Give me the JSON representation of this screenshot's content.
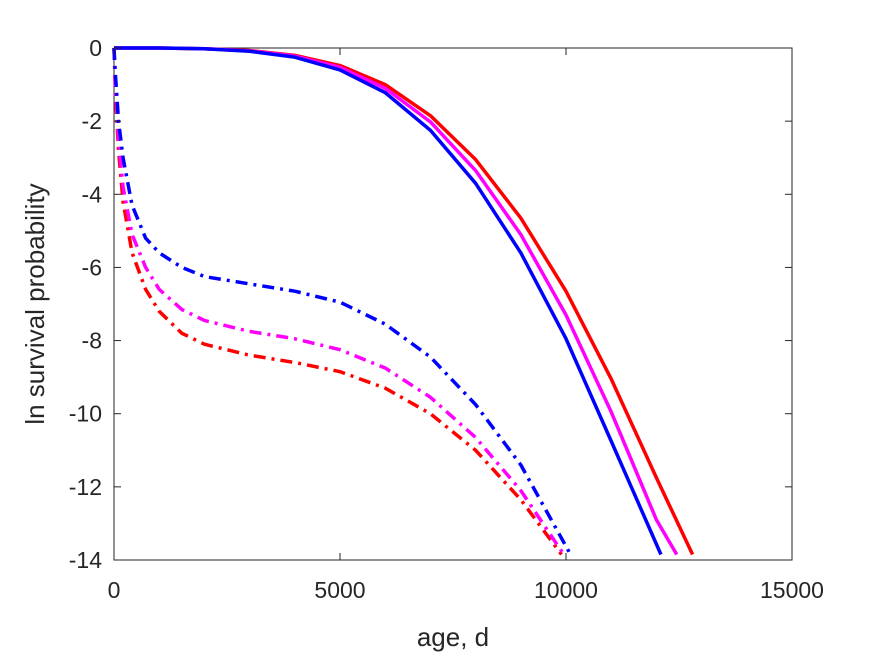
{
  "chart_data": {
    "type": "line",
    "xlabel": "age, d",
    "ylabel": "ln survival probability",
    "xlim": [
      0,
      15000
    ],
    "ylim": [
      -14,
      0
    ],
    "xticks": [
      0,
      5000,
      10000,
      15000
    ],
    "yticks": [
      0,
      -2,
      -4,
      -6,
      -8,
      -10,
      -12,
      -14
    ],
    "grid": false,
    "legend": "none",
    "series": [
      {
        "color": "#ff0000",
        "style": "solid",
        "points": [
          [
            0,
            0
          ],
          [
            1000,
            0
          ],
          [
            2000,
            -0.02
          ],
          [
            3000,
            -0.07
          ],
          [
            4000,
            -0.2
          ],
          [
            5000,
            -0.48
          ],
          [
            6000,
            -1.0
          ],
          [
            7000,
            -1.85
          ],
          [
            8000,
            -3.05
          ],
          [
            9000,
            -4.65
          ],
          [
            10000,
            -6.65
          ],
          [
            11000,
            -9.05
          ],
          [
            12000,
            -11.75
          ],
          [
            12800,
            -13.85
          ]
        ]
      },
      {
        "color": "#ff00ff",
        "style": "solid",
        "points": [
          [
            0,
            0
          ],
          [
            1000,
            0
          ],
          [
            2000,
            -0.02
          ],
          [
            3000,
            -0.08
          ],
          [
            4000,
            -0.22
          ],
          [
            5000,
            -0.53
          ],
          [
            6000,
            -1.1
          ],
          [
            7000,
            -2.02
          ],
          [
            8000,
            -3.35
          ],
          [
            9000,
            -5.1
          ],
          [
            10000,
            -7.3
          ],
          [
            11000,
            -9.95
          ],
          [
            12000,
            -12.9
          ],
          [
            12450,
            -13.85
          ]
        ]
      },
      {
        "color": "#0000ff",
        "style": "solid",
        "points": [
          [
            0,
            0
          ],
          [
            1000,
            0
          ],
          [
            2000,
            -0.02
          ],
          [
            3000,
            -0.09
          ],
          [
            4000,
            -0.25
          ],
          [
            5000,
            -0.6
          ],
          [
            6000,
            -1.22
          ],
          [
            7000,
            -2.25
          ],
          [
            8000,
            -3.7
          ],
          [
            9000,
            -5.6
          ],
          [
            10000,
            -7.95
          ],
          [
            11000,
            -10.75
          ],
          [
            12100,
            -13.85
          ]
        ]
      },
      {
        "color": "#ff0000",
        "style": "dashdot",
        "points": [
          [
            0,
            0
          ],
          [
            30,
            -1.2
          ],
          [
            100,
            -2.8
          ],
          [
            200,
            -4.2
          ],
          [
            400,
            -5.6
          ],
          [
            700,
            -6.6
          ],
          [
            1000,
            -7.2
          ],
          [
            1500,
            -7.8
          ],
          [
            2000,
            -8.1
          ],
          [
            3000,
            -8.4
          ],
          [
            4000,
            -8.6
          ],
          [
            5000,
            -8.85
          ],
          [
            6000,
            -9.3
          ],
          [
            7000,
            -10.0
          ],
          [
            8000,
            -11.0
          ],
          [
            9000,
            -12.35
          ],
          [
            9900,
            -13.85
          ]
        ]
      },
      {
        "color": "#ff00ff",
        "style": "dashdot",
        "points": [
          [
            0,
            0
          ],
          [
            30,
            -1.0
          ],
          [
            100,
            -2.5
          ],
          [
            200,
            -3.8
          ],
          [
            400,
            -5.1
          ],
          [
            700,
            -6.0
          ],
          [
            1000,
            -6.6
          ],
          [
            1500,
            -7.15
          ],
          [
            2000,
            -7.45
          ],
          [
            3000,
            -7.75
          ],
          [
            4000,
            -7.95
          ],
          [
            5000,
            -8.25
          ],
          [
            6000,
            -8.75
          ],
          [
            7000,
            -9.55
          ],
          [
            8000,
            -10.65
          ],
          [
            9000,
            -12.1
          ],
          [
            9950,
            -13.85
          ]
        ]
      },
      {
        "color": "#0000ff",
        "style": "dashdot",
        "points": [
          [
            0,
            0
          ],
          [
            30,
            -0.7
          ],
          [
            100,
            -2.0
          ],
          [
            200,
            -3.0
          ],
          [
            400,
            -4.3
          ],
          [
            700,
            -5.2
          ],
          [
            1000,
            -5.6
          ],
          [
            1500,
            -6.0
          ],
          [
            2000,
            -6.25
          ],
          [
            3000,
            -6.45
          ],
          [
            4000,
            -6.65
          ],
          [
            5000,
            -6.95
          ],
          [
            6000,
            -7.55
          ],
          [
            7000,
            -8.45
          ],
          [
            8000,
            -9.75
          ],
          [
            9000,
            -11.4
          ],
          [
            10100,
            -13.85
          ]
        ]
      }
    ]
  }
}
